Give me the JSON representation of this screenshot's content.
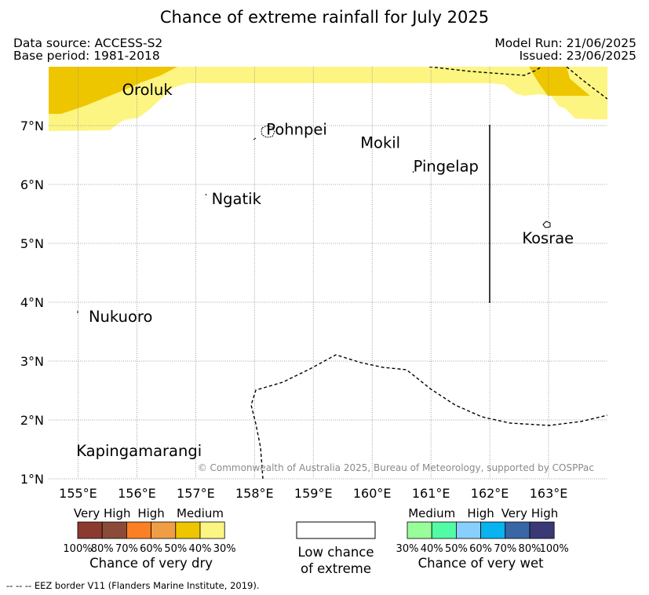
{
  "title": "Chance of extreme rainfall for July 2025",
  "meta": {
    "data_source": "Data source: ACCESS-S2",
    "base_period": "Base period: 1981-2018",
    "model_run": "Model Run: 21/06/2025",
    "issued": "Issued: 23/06/2025"
  },
  "map": {
    "lon_range": [
      154.5,
      164.0
    ],
    "lat_range": [
      1.0,
      8.0
    ],
    "lon_ticks": [
      {
        "value": 155,
        "label": "155°E"
      },
      {
        "value": 156,
        "label": "156°E"
      },
      {
        "value": 157,
        "label": "157°E"
      },
      {
        "value": 158,
        "label": "158°E"
      },
      {
        "value": 159,
        "label": "159°E"
      },
      {
        "value": 160,
        "label": "160°E"
      },
      {
        "value": 161,
        "label": "161°E"
      },
      {
        "value": 162,
        "label": "162°E"
      },
      {
        "value": 163,
        "label": "163°E"
      }
    ],
    "lat_ticks": [
      {
        "value": 1,
        "label": "1°N"
      },
      {
        "value": 2,
        "label": "2°N"
      },
      {
        "value": 3,
        "label": "3°N"
      },
      {
        "value": 4,
        "label": "4°N"
      },
      {
        "value": 5,
        "label": "5°N"
      },
      {
        "value": 6,
        "label": "6°N"
      },
      {
        "value": 7,
        "label": "7°N"
      }
    ],
    "grid": true,
    "places": [
      {
        "name": "Oroluk",
        "lon": 155.75,
        "lat": 7.52
      },
      {
        "name": "Pohnpei",
        "lon": 158.2,
        "lat": 6.85
      },
      {
        "name": "Mokil",
        "lon": 159.8,
        "lat": 6.62
      },
      {
        "name": "Pingelap",
        "lon": 160.7,
        "lat": 6.22
      },
      {
        "name": "Ngatik",
        "lon": 157.27,
        "lat": 5.67
      },
      {
        "name": "Kosrae",
        "lon": 162.55,
        "lat": 5.0
      },
      {
        "name": "Nukuoro",
        "lon": 155.18,
        "lat": 3.67
      },
      {
        "name": "Kapingamarangi",
        "lon": 154.97,
        "lat": 1.39
      }
    ],
    "copyright": "© Commonwealth of Australia 2025, Bureau of Meteorology, supported by COSPPac",
    "colors": {
      "dry_medium_30_40": "#fdf582",
      "dry_medium_40_50": "#eec600",
      "grid": "#8a8a8a",
      "eez": "#000000"
    }
  },
  "legend": {
    "dry": {
      "levels": [
        {
          "label": "Very High",
          "colors": [
            "#8b3a2f",
            "#8b4b39"
          ]
        },
        {
          "label": "High",
          "colors": [
            "#fb7f25",
            "#f09e46"
          ]
        },
        {
          "label": "Medium",
          "colors": [
            "#eec600",
            "#fdf582"
          ]
        }
      ],
      "ticks": [
        "100%",
        "80%",
        "70%",
        "60%",
        "50%",
        "40%",
        "30%"
      ],
      "title": "Chance of very dry"
    },
    "neutral": {
      "color": "#ffffff",
      "title_line1": "Low chance",
      "title_line2": "of extreme"
    },
    "wet": {
      "levels": [
        {
          "label": "Medium",
          "colors": [
            "#98fe99",
            "#52fba6"
          ]
        },
        {
          "label": "High",
          "colors": [
            "#89cffe",
            "#09b3ef"
          ]
        },
        {
          "label": "Very High",
          "colors": [
            "#3866a6",
            "#3a3877"
          ]
        }
      ],
      "ticks": [
        "30%",
        "40%",
        "50%",
        "60%",
        "70%",
        "80%",
        "100%"
      ],
      "title": "Chance of very wet"
    }
  },
  "footnote": "--  --  -- EEZ border V11 (Flanders Marine Institute, 2019)."
}
